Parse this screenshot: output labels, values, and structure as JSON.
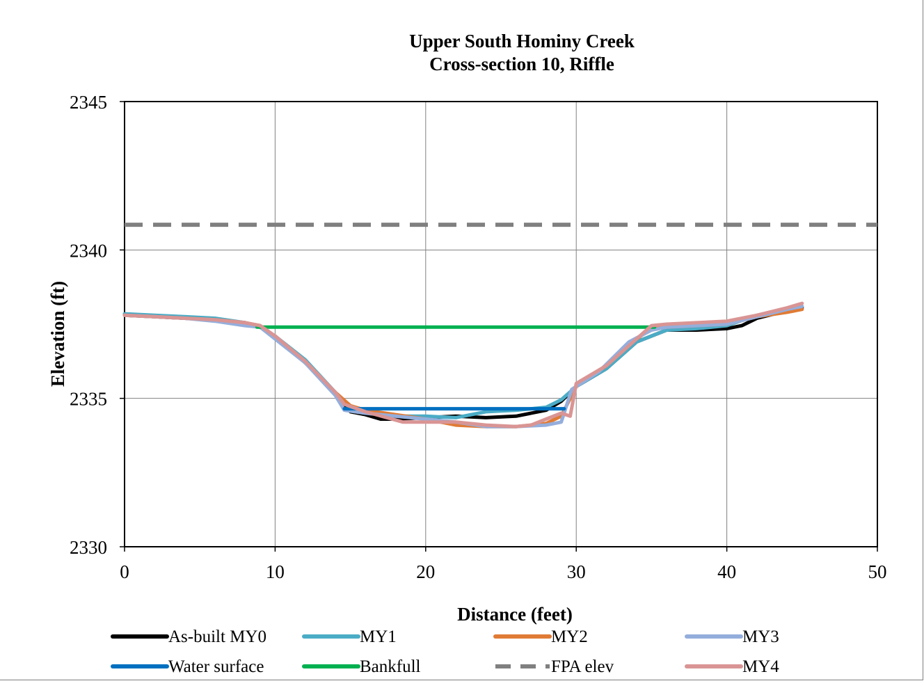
{
  "chart_data": {
    "type": "line",
    "title": "Upper South Hominy Creek",
    "subtitle": "Cross-section 10, Riffle",
    "xlabel": "Distance (feet)",
    "ylabel": "Elevation (ft)",
    "xlim": [
      0,
      50
    ],
    "ylim": [
      2330,
      2345
    ],
    "xticks": [
      0,
      10,
      20,
      30,
      40,
      50
    ],
    "yticks": [
      2330,
      2335,
      2340,
      2345
    ],
    "xtick_labels": [
      "0",
      "10",
      "20",
      "30",
      "40",
      "50"
    ],
    "ytick_labels": [
      "2330",
      "2335",
      "2340",
      "2345"
    ],
    "grid": true,
    "legend_position": "bottom",
    "series": [
      {
        "name": "As-built MY0",
        "color": "#000000",
        "style": "solid",
        "x": [
          0,
          2,
          4,
          6,
          8,
          9,
          10,
          12,
          14,
          15,
          16,
          17,
          18,
          20,
          22,
          24,
          26,
          28,
          29,
          30,
          32,
          34,
          36,
          38,
          40,
          41,
          42,
          44,
          45
        ],
        "y": [
          2337.8,
          2337.75,
          2337.7,
          2337.65,
          2337.55,
          2337.4,
          2337.1,
          2336.2,
          2335.2,
          2334.55,
          2334.45,
          2334.3,
          2334.3,
          2334.35,
          2334.4,
          2334.35,
          2334.4,
          2334.6,
          2334.9,
          2335.4,
          2336.0,
          2336.9,
          2337.3,
          2337.3,
          2337.35,
          2337.45,
          2337.7,
          2337.95,
          2338.05
        ]
      },
      {
        "name": "MY1",
        "color": "#4bacc6",
        "style": "solid",
        "x": [
          0,
          2,
          4,
          6,
          8,
          9,
          10,
          12,
          14,
          15,
          16,
          18,
          20,
          22,
          24,
          26,
          28,
          29,
          30,
          32,
          34,
          36,
          38,
          40,
          42,
          44,
          45
        ],
        "y": [
          2337.85,
          2337.8,
          2337.75,
          2337.7,
          2337.55,
          2337.4,
          2337.1,
          2336.3,
          2335.2,
          2334.7,
          2334.55,
          2334.4,
          2334.4,
          2334.35,
          2334.55,
          2334.6,
          2334.7,
          2334.95,
          2335.4,
          2336.0,
          2336.9,
          2337.3,
          2337.35,
          2337.45,
          2337.8,
          2338.0,
          2338.1
        ]
      },
      {
        "name": "MY2",
        "color": "#e07b35",
        "style": "solid",
        "x": [
          0,
          2,
          4,
          6,
          8,
          9,
          10,
          12,
          14,
          15,
          16,
          18,
          20,
          22,
          24,
          26,
          28,
          29,
          30,
          32,
          34,
          35,
          36,
          38,
          40,
          42,
          44,
          45
        ],
        "y": [
          2337.8,
          2337.75,
          2337.7,
          2337.65,
          2337.55,
          2337.45,
          2337.05,
          2336.2,
          2335.2,
          2334.75,
          2334.6,
          2334.45,
          2334.3,
          2334.1,
          2334.05,
          2334.05,
          2334.15,
          2334.4,
          2335.4,
          2336.1,
          2337.0,
          2337.35,
          2337.4,
          2337.45,
          2337.5,
          2337.75,
          2337.9,
          2338.0
        ]
      },
      {
        "name": "MY3",
        "color": "#94aedc",
        "style": "solid",
        "x": [
          0,
          2,
          4,
          6,
          8,
          9,
          10,
          12,
          14,
          14.6,
          16,
          18,
          20,
          22,
          24,
          26,
          28,
          29,
          29.7,
          31.5,
          33.5,
          35,
          36,
          38,
          40,
          42,
          44,
          45
        ],
        "y": [
          2337.8,
          2337.75,
          2337.7,
          2337.6,
          2337.45,
          2337.4,
          2337.0,
          2336.2,
          2335.1,
          2334.6,
          2334.5,
          2334.4,
          2334.3,
          2334.2,
          2334.05,
          2334.05,
          2334.1,
          2334.2,
          2335.3,
          2335.9,
          2336.9,
          2337.3,
          2337.4,
          2337.45,
          2337.5,
          2337.75,
          2338.0,
          2338.1
        ]
      },
      {
        "name": "Water surface",
        "color": "#0070c0",
        "style": "solid",
        "x": [
          14.6,
          29.2
        ],
        "y": [
          2334.65,
          2334.65
        ]
      },
      {
        "name": "Bankfull",
        "color": "#00b050",
        "style": "solid",
        "x": [
          8.8,
          35.2
        ],
        "y": [
          2337.4,
          2337.4
        ]
      },
      {
        "name": "FPA elev",
        "color": "#808080",
        "style": "dashed",
        "x": [
          0,
          50
        ],
        "y": [
          2340.85,
          2340.85
        ]
      },
      {
        "name": "MY4",
        "color": "#d99594",
        "style": "solid",
        "x": [
          0,
          2,
          4,
          6,
          8,
          9,
          10,
          12,
          14,
          14.6,
          16,
          18.5,
          20,
          22,
          24,
          26,
          27,
          28,
          29,
          29.6,
          30,
          32,
          34,
          35,
          36,
          38,
          40,
          42,
          44,
          45
        ],
        "y": [
          2337.8,
          2337.75,
          2337.7,
          2337.65,
          2337.55,
          2337.45,
          2337.1,
          2336.25,
          2335.2,
          2334.8,
          2334.55,
          2334.2,
          2334.2,
          2334.2,
          2334.1,
          2334.05,
          2334.1,
          2334.3,
          2334.5,
          2334.4,
          2335.5,
          2336.1,
          2337.0,
          2337.45,
          2337.5,
          2337.55,
          2337.6,
          2337.8,
          2338.05,
          2338.2
        ]
      }
    ]
  }
}
